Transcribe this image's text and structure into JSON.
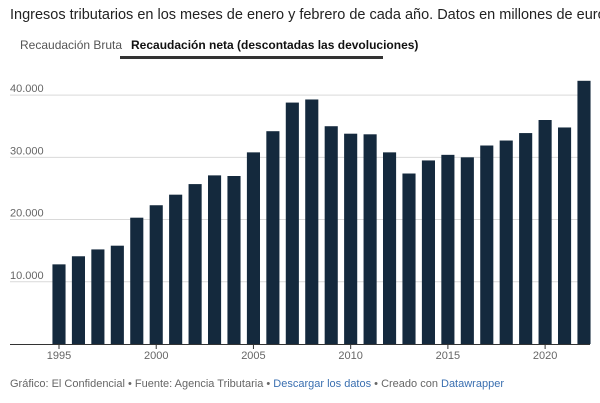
{
  "title": "Ingresos tributarios en los meses de enero y febrero de cada año. Datos en millones de euros",
  "tabs": [
    {
      "label": "Recaudación Bruta",
      "active": false
    },
    {
      "label": "Recaudación neta (descontadas las devoluciones)",
      "active": true
    }
  ],
  "footer": {
    "prefix": "Gráfico: El Confidencial • Fuente: Agencia Tributaria • ",
    "download_link": "Descargar los datos",
    "middle": " • Creado con ",
    "tool_link": "Datawrapper"
  },
  "colors": {
    "bar": "#14293d",
    "grid": "#d9d9d9",
    "underline": "#333333"
  },
  "chart_data": {
    "type": "bar",
    "categories": [
      "1995",
      "1996",
      "1997",
      "1998",
      "1999",
      "2000",
      "2001",
      "2002",
      "2003",
      "2004",
      "2005",
      "2006",
      "2007",
      "2008",
      "2009",
      "2010",
      "2011",
      "2012",
      "2013",
      "2014",
      "2015",
      "2016",
      "2017",
      "2018",
      "2019",
      "2020",
      "2021",
      "2022"
    ],
    "values": [
      12800,
      14100,
      15200,
      15800,
      20300,
      22300,
      24000,
      25700,
      27100,
      27000,
      30800,
      34200,
      38800,
      39300,
      35000,
      33800,
      33700,
      30800,
      27400,
      29500,
      30400,
      30000,
      31900,
      32700,
      33900,
      36000,
      34800,
      42300
    ],
    "ylim": [
      0,
      45000
    ],
    "yticks": [
      10000,
      20000,
      30000,
      40000
    ],
    "ytick_labels": [
      "10.000",
      "20.000",
      "30.000",
      "40.000"
    ],
    "xtick_labels": [
      "1995",
      "2000",
      "2005",
      "2010",
      "2015",
      "2020"
    ],
    "grid": true
  }
}
